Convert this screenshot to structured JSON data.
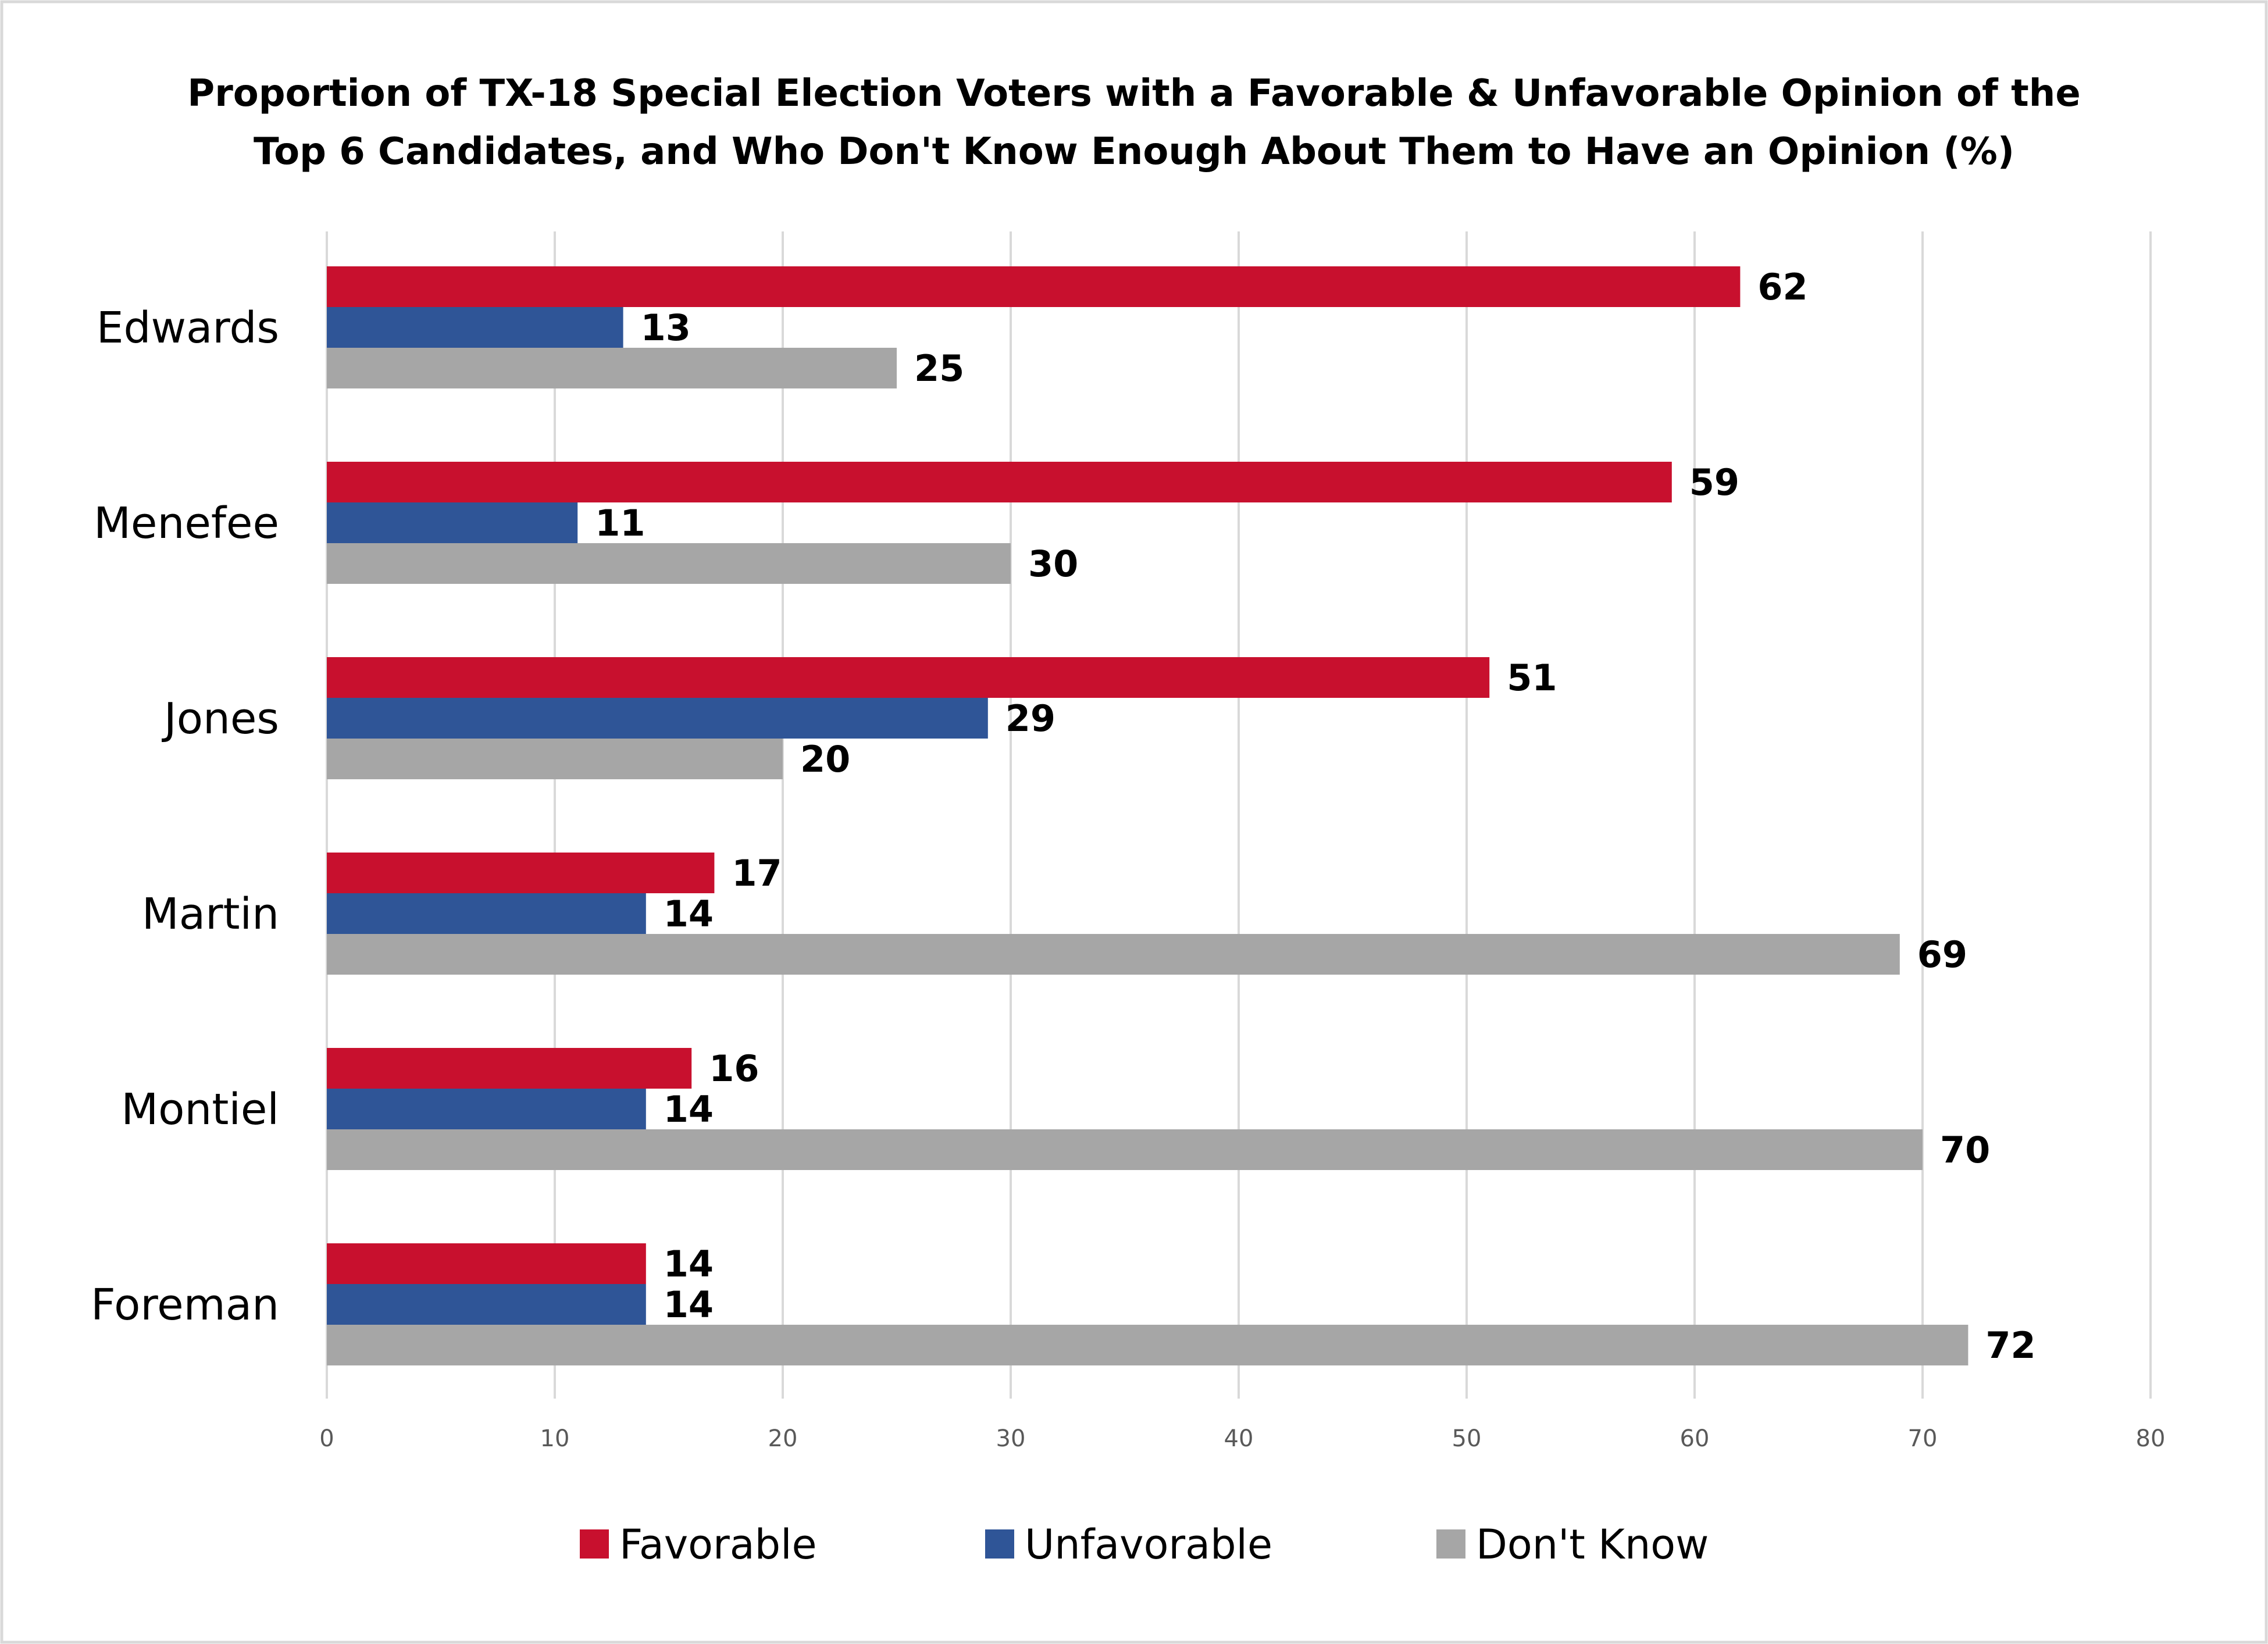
{
  "chart_data": {
    "type": "bar",
    "orientation": "horizontal",
    "title": [
      "Proportion of TX-18 Special Election Voters with a Favorable & Unfavorable Opinion of the",
      "Top 6 Candidates, and Who Don't Know Enough About Them to Have an Opinion (%)"
    ],
    "categories": [
      "Edwards",
      "Menefee",
      "Jones",
      "Martin",
      "Montiel",
      "Foreman"
    ],
    "series": [
      {
        "name": "Favorable",
        "color": "#C8102E",
        "values": [
          62,
          59,
          51,
          17,
          16,
          14
        ]
      },
      {
        "name": "Unfavorable",
        "color": "#2F5597",
        "values": [
          13,
          11,
          29,
          14,
          14,
          14
        ]
      },
      {
        "name": "Don't Know",
        "color": "#A6A6A6",
        "values": [
          25,
          30,
          20,
          69,
          70,
          72
        ]
      }
    ],
    "xlim": [
      0,
      80
    ],
    "xticks": [
      0,
      10,
      20,
      30,
      40,
      50,
      60,
      70,
      80
    ],
    "xlabel": "",
    "ylabel": "",
    "grid": true,
    "legend_position": "bottom"
  }
}
